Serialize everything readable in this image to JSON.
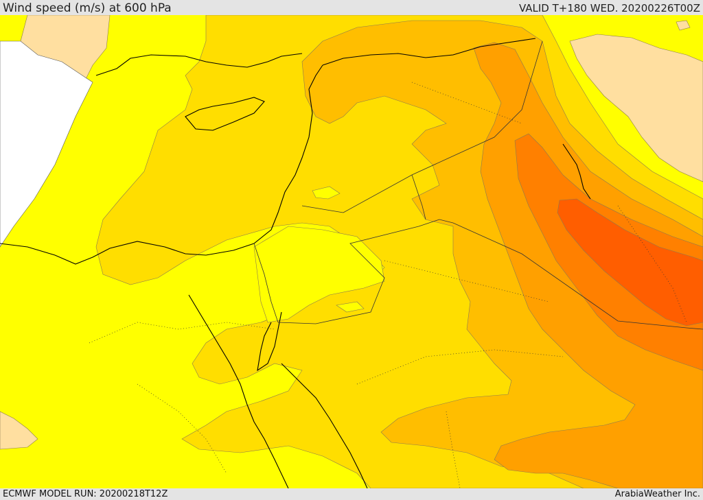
{
  "header": {
    "title": "Wind speed (m/s) at 600 hPa",
    "valid": "VALID T+180 WED. 20200226T00Z"
  },
  "footer": {
    "model_run": "ECMWF MODEL RUN: 20200218T12Z",
    "credit": "ArabiaWeather Inc."
  },
  "map": {
    "region": "Eastern Mediterranean and Middle East",
    "field": "wind speed",
    "level_hpa": 600,
    "shading_colors": {
      "sea_white": "#ffffff",
      "light_tan": "#ffdfa0",
      "yellow": "#ffff00",
      "gold": "#ffde00",
      "amber": "#ffbe00",
      "orange": "#ffa000",
      "dark_orange": "#ff8000",
      "red_orange": "#ff5e00"
    }
  }
}
